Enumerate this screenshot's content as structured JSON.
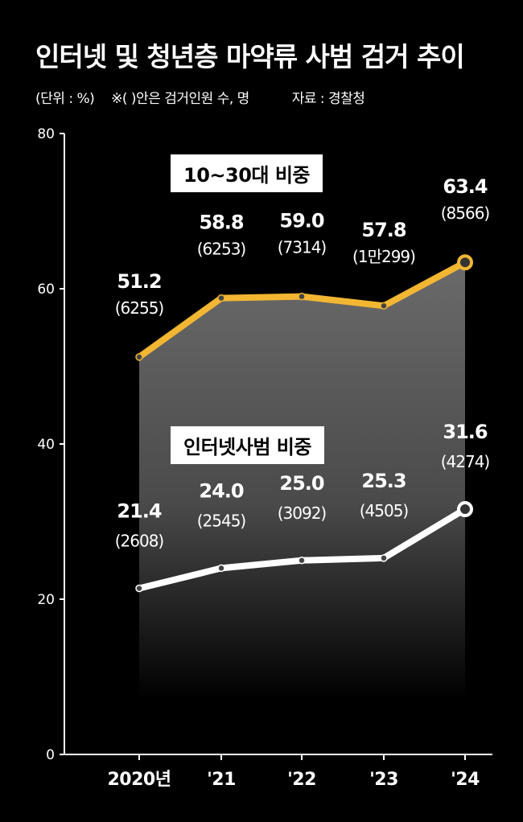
{
  "header": {
    "title": "인터넷 및 청년층 마약류 사범 검거 추이",
    "unit": "(단위 : %)",
    "note": "※(  )안은 검거인원 수, 명",
    "source": "자료 : 경찰청"
  },
  "chart_data": {
    "type": "area",
    "categories": [
      "2020년",
      "'21",
      "'22",
      "'23",
      "'24"
    ],
    "ylim": [
      0,
      80
    ],
    "yticks": [
      "0",
      "20",
      "40",
      "60",
      "80"
    ],
    "grid": false,
    "series": [
      {
        "name": "10~30대 비중",
        "color": "#f2b632",
        "values": [
          51.2,
          58.8,
          59.0,
          57.8,
          63.4
        ],
        "value_labels": [
          "51.2",
          "58.8",
          "59.0",
          "57.8",
          "63.4"
        ],
        "counts": [
          "(6255)",
          "(6253)",
          "(7314)",
          "(1만299)",
          "(8566)"
        ]
      },
      {
        "name": "인터넷사범 비중",
        "color": "#ffffff",
        "values": [
          21.4,
          24.0,
          25.0,
          25.3,
          31.6
        ],
        "value_labels": [
          "21.4",
          "24.0",
          "25.0",
          "25.3",
          "31.6"
        ],
        "counts": [
          "(2608)",
          "(2545)",
          "(3092)",
          "(4505)",
          "(4274)"
        ]
      }
    ]
  }
}
